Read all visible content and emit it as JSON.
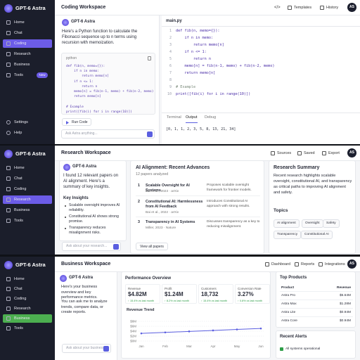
{
  "panels": [
    {
      "sidebar": {
        "brand": "GPT-6 Astra",
        "nav": [
          "Home",
          "Chat",
          "Coding",
          "Research",
          "Business",
          "Tools"
        ],
        "active": 2,
        "badge": "New",
        "footer": [
          "Settings",
          "Help"
        ]
      },
      "header": {
        "title": "Coding Workspace",
        "actions": [
          "Templates",
          "History"
        ],
        "avatar": "AS"
      },
      "chat": {
        "assistant": "GPT-6 Astra",
        "message": "Here's a Python function to calculate the Fibonacci sequence up to n terms using recursion with memoization.",
        "code_lang": "python",
        "code": [
          "def fib(n, memo={}):",
          "    if n in memo:",
          "        return memo[n]",
          "    if n <= 1:",
          "        return n",
          "    memo[n] = fib(n-1, memo) + fib(n-2, memo)",
          "    return memo[n]",
          null,
          "# Example",
          "print([fib(i) for i in range(10)])"
        ],
        "button": "Run Code",
        "input": "Ask Astra anything..."
      },
      "editor": {
        "file": "main.py",
        "lines": [
          {
            "n": "1",
            "code": "def fib(n, memo={}):"
          },
          {
            "n": "2",
            "code": "    if n in memo:"
          },
          {
            "n": "3",
            "code": "        return memo[n]"
          },
          {
            "n": "4",
            "code": "    if n <= 1:"
          },
          {
            "n": "5",
            "code": "        return n"
          },
          {
            "n": "6",
            "code": "    memo[n] = fib(n-1, memo) + fib(n-2, memo)"
          },
          {
            "n": "7",
            "code": "    return memo[n]"
          },
          {
            "n": "8"
          },
          {
            "n": "9",
            "code": "# Example"
          },
          {
            "n": "10",
            "code": "print([fib(i) for i in range(10)])"
          }
        ],
        "tabs": [
          "Terminal",
          "Output",
          "Debug"
        ],
        "active_tab": 1,
        "output": "[0, 1, 1, 2, 3, 5, 8, 13, 21, 34]"
      }
    },
    {
      "sidebar": {
        "brand": "GPT-6 Astra",
        "nav": [
          "Home",
          "Chat",
          "Coding",
          "Research",
          "Business",
          "Tools"
        ],
        "active": 3
      },
      "header": {
        "title": "Research Workspace",
        "actions": [
          "Sources",
          "Saved",
          "Export"
        ],
        "avatar": "AS"
      },
      "chat": {
        "assistant": "GPT-6 Astra",
        "message": "I found 12 relevant papers on AI alignment. Here's a summary of key insights.",
        "insights_title": "Key Insights",
        "insights": [
          "Scalable oversight improves AI reliability.",
          "Constitutional AI shows strong promise.",
          "Transparency reduces misalignment risks."
        ],
        "input": "Ask about your research..."
      },
      "papers": {
        "title": "AI Alignment: Recent Advances",
        "subtitle": "12 papers analyzed",
        "items": [
          {
            "n": "1",
            "title": "Scalable Oversight for AI Systems",
            "meta": "Bai et al., 2023 · arXiv",
            "desc": "Proposes scalable oversight framework for frontier models."
          },
          {
            "n": "2",
            "title": "Constitutional AI: Harmlessness from AI Feedback",
            "meta": "Bai et al., 2022 · arXiv",
            "desc": "Introduces Constitutional AI approach with strong results."
          },
          {
            "n": "3",
            "title": "Transparency in AI Systems",
            "meta": "Miller, 2023 · Nature",
            "desc": "Discusses transparency as a key to reducing misalignment."
          }
        ],
        "button": "View all papers"
      },
      "summary": {
        "title": "Research Summary",
        "text": "Recent research highlights scalable oversight, constitutional AI, and transparency as critical paths to improving AI alignment and safety.",
        "topics_title": "Topics",
        "topics": [
          "AI alignment",
          "Oversight",
          "Safety",
          "Transparency",
          "Constitutional AI"
        ]
      }
    },
    {
      "sidebar": {
        "brand": "GPT-6 Astra",
        "nav": [
          "Home",
          "Chat",
          "Coding",
          "Research",
          "Business",
          "Tools"
        ],
        "active": 4
      },
      "header": {
        "title": "Business Workspace",
        "actions": [
          "Dashboard",
          "Reports",
          "Integrations"
        ],
        "avatar": "AS"
      },
      "chat": {
        "assistant": "GPT-6 Astra",
        "messages": [
          "Here's your business overview and key performance metrics.",
          "You can ask me to analyze trends, compare data, or create reports."
        ],
        "input": "Ask about your business..."
      },
      "overview": {
        "title": "Performance Overview",
        "metrics": [
          {
            "label": "Revenue",
            "value": "$4.82M",
            "delta": "↑ 15.4% vs last month"
          },
          {
            "label": "Profit",
            "value": "$1.24M",
            "delta": "↑ 8.2% vs last month"
          },
          {
            "label": "Customers",
            "value": "18,732",
            "delta": "↑ 15.4% vs last month"
          },
          {
            "label": "Conversion Rate",
            "value": "3.27%",
            "delta": "↑ 0.8% vs last month"
          }
        ],
        "revenue_trend": {
          "type": "line",
          "title": "Revenue Trend",
          "categories": [
            "Jan",
            "Feb",
            "Mar",
            "Apr",
            "May",
            "Jun"
          ],
          "values": [
            3.1,
            3.5,
            3.9,
            4.3,
            4.7,
            5.1
          ],
          "color": "#5b5fe0",
          "ylim": [
            0,
            8
          ],
          "yticks": [
            {
              "value": 0,
              "label": "$0M"
            },
            {
              "value": 2,
              "label": "$2M"
            },
            {
              "value": 4,
              "label": "$4M"
            },
            {
              "value": 6,
              "label": "$6M"
            },
            {
              "value": 8,
              "label": "$8M"
            }
          ],
          "grid": true
        }
      },
      "products": {
        "title": "Top Products",
        "headers": [
          "Product",
          "Revenue"
        ],
        "rows": [
          [
            "Astra Pro",
            "$5.64M"
          ],
          [
            "Astra Max",
            "$1.28M"
          ],
          [
            "Astra Lite",
            "$0.94M"
          ],
          [
            "Astra Core",
            "$0.94M"
          ]
        ]
      },
      "alerts": {
        "title": "Recent Alerts",
        "items": [
          "All systems operational"
        ]
      }
    }
  ]
}
